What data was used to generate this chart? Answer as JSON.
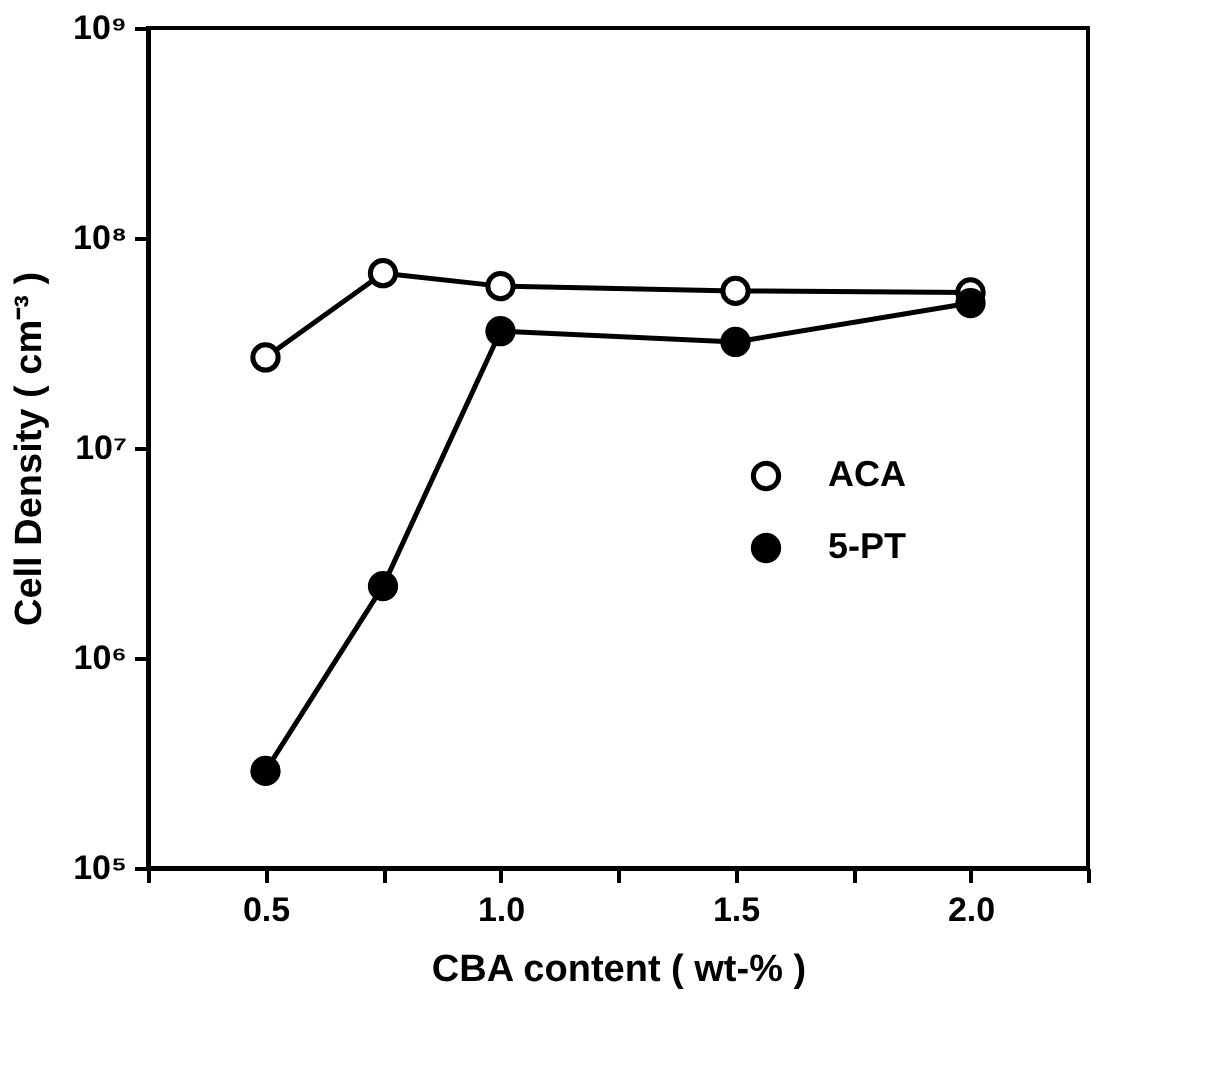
{
  "chart_data": {
    "type": "line",
    "xlabel": "CBA  content  ( wt-% )",
    "ylabel": "Cell Density  ( cm⁻³ )",
    "log": "y",
    "xlim": [
      0.25,
      2.25
    ],
    "xticks": [
      {
        "value": 0.25,
        "label": null
      },
      0.5,
      {
        "value": 0.75,
        "label": null
      },
      {
        "value": 1.0,
        "label": "1.0"
      },
      {
        "value": 1.25,
        "label": null
      },
      1.5,
      {
        "value": 1.75,
        "label": null
      },
      {
        "value": 2.0,
        "label": "2.0"
      },
      {
        "value": 2.25,
        "label": null
      }
    ],
    "ylim": [
      100000,
      1000000000
    ],
    "yticks": [
      {
        "value": 100000,
        "label": "10⁵"
      },
      {
        "value": 1000000,
        "label": "10⁶"
      },
      {
        "value": 10000000,
        "label": "10⁷"
      },
      {
        "value": 100000000,
        "label": "10⁸"
      },
      {
        "value": 1000000000,
        "label": "10⁹"
      }
    ],
    "marker": "circle",
    "grid": false,
    "legend": "right",
    "series": [
      {
        "name": "ACA",
        "color": "#000000",
        "x": [
          0.5,
          0.75,
          1.0,
          1.5,
          2.0
        ],
        "values": [
          27000000,
          68000000,
          59000000,
          56000000,
          55000000
        ]
      },
      {
        "name": "5-PT",
        "color": "#000000",
        "x": [
          0.5,
          0.75,
          1.0,
          1.5,
          2.0
        ],
        "values": [
          290000,
          2200000,
          36000000,
          32000000,
          49000000
        ]
      }
    ]
  }
}
